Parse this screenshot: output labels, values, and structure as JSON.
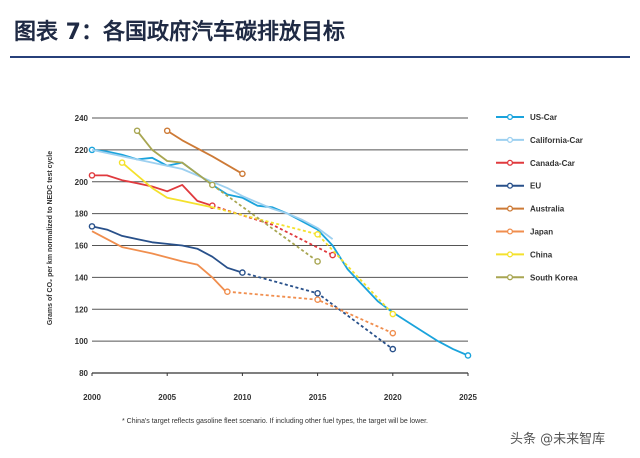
{
  "figure_title": "图表 7：各国政府汽车碳排放目标",
  "footnote": "* China's target reflects gasoline fleet scenario. If including other fuel types, the target will be lower.",
  "watermark": "头条 @未来智库",
  "chart_data": {
    "type": "line",
    "ylabel": "Grams of CO₂ per km normalized to NEDC test cycle",
    "xlim": [
      2000,
      2025
    ],
    "ylim": [
      80,
      240
    ],
    "xticks": [
      2000,
      2005,
      2010,
      2015,
      2020,
      2025
    ],
    "yticks": [
      80,
      100,
      120,
      140,
      160,
      180,
      200,
      220,
      240
    ],
    "grid": "horizontal",
    "legend": "right",
    "series": [
      {
        "name": "US-Car",
        "color": "#1aa3dc",
        "actual": [
          [
            2000,
            220
          ],
          [
            2001,
            219
          ],
          [
            2002,
            217
          ],
          [
            2003,
            214
          ],
          [
            2004,
            215
          ],
          [
            2005,
            210
          ],
          [
            2006,
            212
          ],
          [
            2007,
            205
          ],
          [
            2008,
            198
          ],
          [
            2009,
            192
          ],
          [
            2010,
            190
          ],
          [
            2011,
            185
          ],
          [
            2012,
            184
          ],
          [
            2013,
            180
          ],
          [
            2014,
            175
          ],
          [
            2015,
            170
          ],
          [
            2016,
            160
          ],
          [
            2017,
            145
          ],
          [
            2018,
            135
          ],
          [
            2019,
            125
          ],
          [
            2020,
            118
          ],
          [
            2021,
            112
          ],
          [
            2022,
            106
          ],
          [
            2023,
            100
          ],
          [
            2024,
            95
          ],
          [
            2025,
            91
          ]
        ],
        "target": [],
        "markers": [
          [
            2000,
            220
          ],
          [
            2025,
            91
          ]
        ]
      },
      {
        "name": "California-Car",
        "color": "#9dd0f0",
        "actual": [
          [
            2000,
            220
          ],
          [
            2002,
            216
          ],
          [
            2004,
            212
          ],
          [
            2006,
            208
          ],
          [
            2008,
            200
          ],
          [
            2009,
            196
          ],
          [
            2010,
            191
          ],
          [
            2011,
            187
          ],
          [
            2012,
            183
          ],
          [
            2013,
            180
          ],
          [
            2014,
            176
          ],
          [
            2015,
            171
          ],
          [
            2016,
            164
          ]
        ],
        "target": [],
        "markers": []
      },
      {
        "name": "Canada-Car",
        "color": "#e03a3e",
        "actual": [
          [
            2000,
            204
          ],
          [
            2001,
            204
          ],
          [
            2002,
            201
          ],
          [
            2003,
            199
          ],
          [
            2004,
            197
          ],
          [
            2005,
            194
          ],
          [
            2006,
            198
          ],
          [
            2007,
            188
          ],
          [
            2008,
            185
          ]
        ],
        "target": [
          [
            2008,
            185
          ],
          [
            2012,
            173
          ],
          [
            2016,
            154
          ]
        ],
        "markers": [
          [
            2000,
            204
          ],
          [
            2008,
            185
          ],
          [
            2016,
            154
          ]
        ]
      },
      {
        "name": "EU",
        "color": "#28508a",
        "actual": [
          [
            2000,
            172
          ],
          [
            2001,
            170
          ],
          [
            2002,
            166
          ],
          [
            2003,
            164
          ],
          [
            2004,
            162
          ],
          [
            2005,
            161
          ],
          [
            2006,
            160
          ],
          [
            2007,
            158
          ],
          [
            2008,
            153
          ],
          [
            2009,
            146
          ],
          [
            2010,
            143
          ]
        ],
        "target": [
          [
            2010,
            143
          ],
          [
            2015,
            130
          ],
          [
            2020,
            95
          ]
        ],
        "markers": [
          [
            2000,
            172
          ],
          [
            2010,
            143
          ],
          [
            2015,
            130
          ],
          [
            2020,
            95
          ]
        ]
      },
      {
        "name": "Australia",
        "color": "#cd7a36",
        "actual": [
          [
            2005,
            232
          ],
          [
            2006,
            226
          ],
          [
            2008,
            216
          ],
          [
            2010,
            205
          ]
        ],
        "target": [],
        "markers": [
          [
            2005,
            232
          ],
          [
            2010,
            205
          ]
        ]
      },
      {
        "name": "Japan",
        "color": "#f08e4e",
        "actual": [
          [
            2000,
            169
          ],
          [
            2002,
            159
          ],
          [
            2004,
            155
          ],
          [
            2006,
            150
          ],
          [
            2007,
            148
          ],
          [
            2008,
            140
          ],
          [
            2009,
            130
          ]
        ],
        "target": [
          [
            2009,
            131
          ],
          [
            2015,
            126
          ],
          [
            2020,
            105
          ]
        ],
        "markers": [
          [
            2009,
            131
          ],
          [
            2015,
            126
          ],
          [
            2020,
            105
          ]
        ]
      },
      {
        "name": "China",
        "color": "#f4e12c",
        "actual": [
          [
            2002,
            212
          ],
          [
            2004,
            196
          ],
          [
            2005,
            190
          ],
          [
            2006,
            188
          ],
          [
            2007,
            186
          ],
          [
            2008,
            184
          ]
        ],
        "target": [
          [
            2008,
            184
          ],
          [
            2015,
            167
          ],
          [
            2020,
            117
          ]
        ],
        "markers": [
          [
            2002,
            212
          ],
          [
            2015,
            167
          ],
          [
            2020,
            117
          ]
        ]
      },
      {
        "name": "South Korea",
        "color": "#a8a652",
        "actual": [
          [
            2003,
            232
          ],
          [
            2004,
            220
          ],
          [
            2005,
            213
          ],
          [
            2006,
            212
          ],
          [
            2007,
            205
          ],
          [
            2008,
            198
          ]
        ],
        "target": [
          [
            2008,
            198
          ],
          [
            2015,
            150
          ]
        ],
        "markers": [
          [
            2003,
            232
          ],
          [
            2008,
            198
          ],
          [
            2015,
            150
          ]
        ]
      }
    ]
  }
}
